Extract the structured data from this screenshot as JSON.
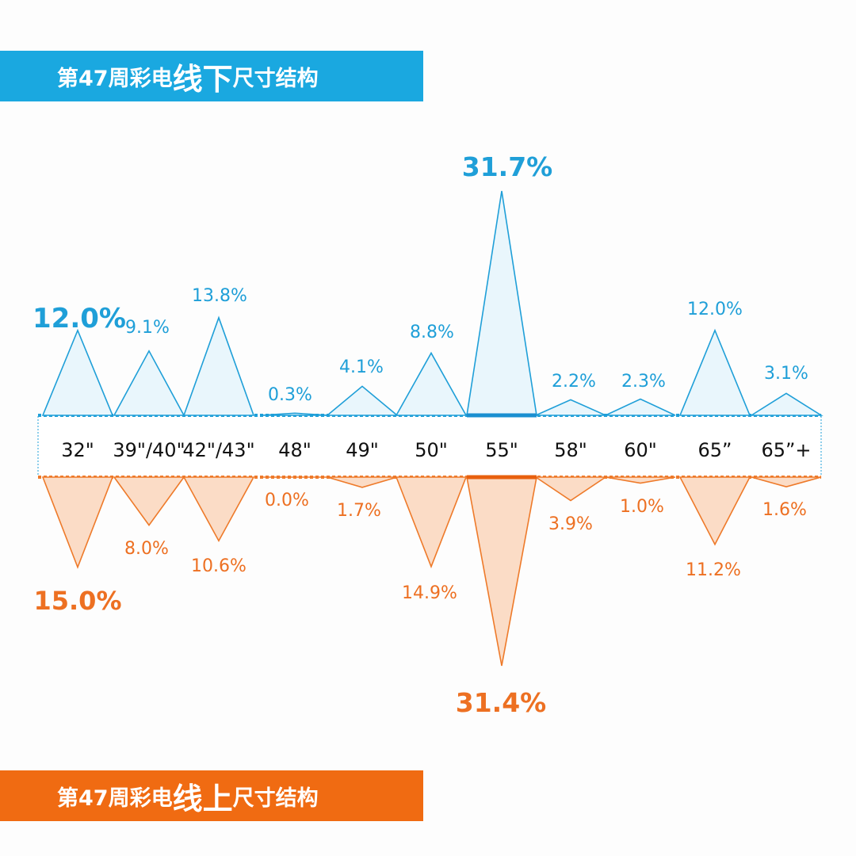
{
  "banner_top": {
    "pre": "第47周彩电",
    "big1": "线",
    "big2": "下",
    "post": "尺寸结构"
  },
  "banner_bottom": {
    "pre": "第47周彩电",
    "big1": "线",
    "big2": "上",
    "post": "尺寸结构"
  },
  "colors": {
    "offline": "#1f9fd8",
    "offline_fill": "#e9f6fc",
    "online": "#ee7a2a",
    "online_fill": "#fbdcc6",
    "online_text": "#ed7022"
  },
  "chart_data": {
    "type": "bar",
    "categories": [
      "32\"",
      "39\"/40\"",
      "42\"/43\"",
      "48\"",
      "49\"",
      "50\"",
      "55\"",
      "58\"",
      "60\"",
      "65”",
      "65”+"
    ],
    "series": [
      {
        "values": [
          12.0,
          9.1,
          13.8,
          0.3,
          4.1,
          8.8,
          31.7,
          2.2,
          2.3,
          12.0,
          3.1
        ],
        "labels": [
          "12.0%",
          "9.1%",
          "13.8%",
          "0.3%",
          "4.1%",
          "8.8%",
          "31.7%",
          "2.2%",
          "2.3%",
          "12.0%",
          "3.1%"
        ]
      },
      {
        "values": [
          15.0,
          8.0,
          10.6,
          0.0,
          1.7,
          14.9,
          31.4,
          3.9,
          1.0,
          11.2,
          1.6
        ],
        "labels": [
          "15.0%",
          "8.0%",
          "10.6%",
          "0.0%",
          "1.7%",
          "14.9%",
          "31.4%",
          "3.9%",
          "1.0%",
          "11.2%",
          "1.6%"
        ]
      }
    ]
  }
}
